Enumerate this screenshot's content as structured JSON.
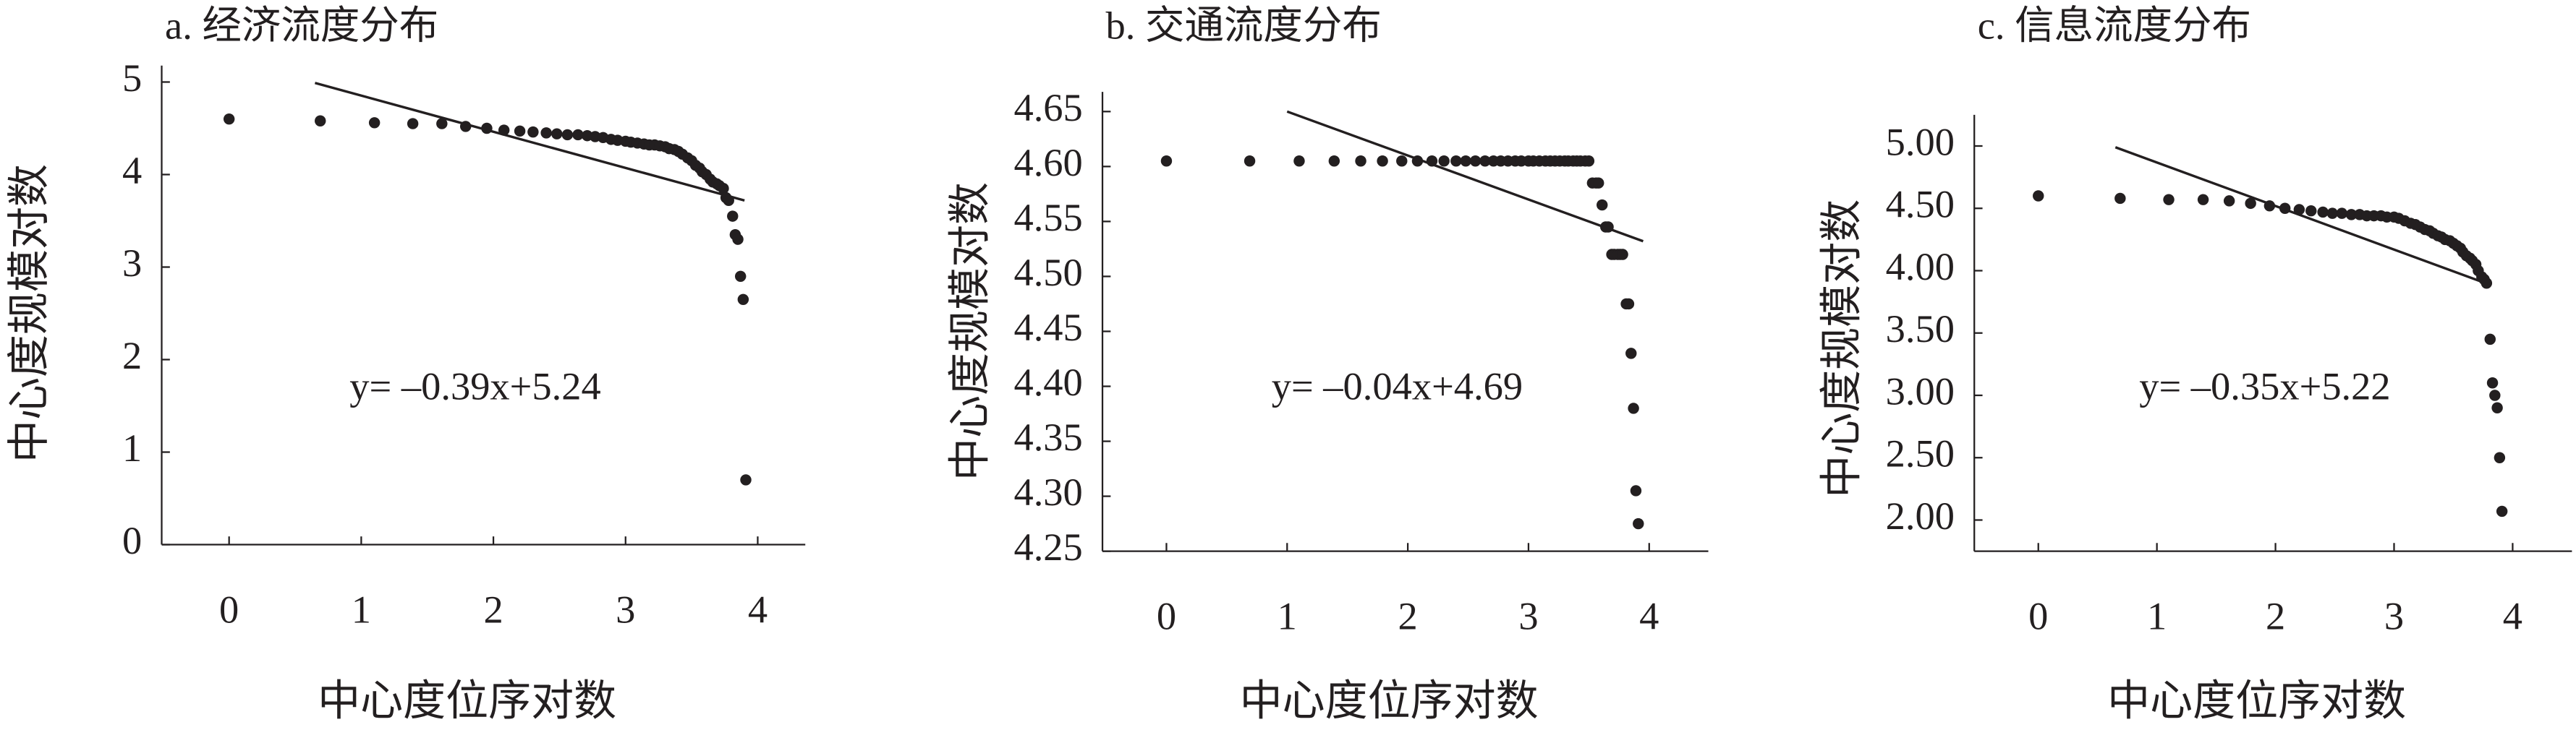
{
  "chart_data": [
    {
      "type": "scatter",
      "title": "a. 经济流度分布",
      "x_label": "中心度位序对数",
      "y_label": "中心度规模对数",
      "annotation": "y= –0.39x+5.24",
      "color": "#231f20",
      "x": [
        0,
        0.69,
        1.1,
        1.39,
        1.61,
        1.79,
        1.95,
        2.08,
        2.2,
        2.3,
        2.4,
        2.48,
        2.56,
        2.64,
        2.71,
        2.77,
        2.83,
        2.89,
        2.94,
        3.0,
        3.04,
        3.09,
        3.14,
        3.18,
        3.22,
        3.26,
        3.3,
        3.33,
        3.37,
        3.4,
        3.43,
        3.47,
        3.5,
        3.53,
        3.56,
        3.58,
        3.61,
        3.64,
        3.66,
        3.69,
        3.71,
        3.74,
        3.76,
        3.78,
        3.81,
        3.83,
        3.85,
        3.87,
        3.89,
        3.91
      ],
      "y": [
        4.6,
        4.58,
        4.56,
        4.55,
        4.55,
        4.52,
        4.5,
        4.48,
        4.47,
        4.46,
        4.45,
        4.44,
        4.43,
        4.43,
        4.42,
        4.41,
        4.4,
        4.38,
        4.37,
        4.36,
        4.35,
        4.34,
        4.33,
        4.32,
        4.32,
        4.31,
        4.3,
        4.28,
        4.27,
        4.25,
        4.22,
        4.18,
        4.15,
        4.1,
        4.07,
        4.03,
        4.0,
        3.95,
        3.92,
        3.9,
        3.88,
        3.85,
        3.75,
        3.72,
        3.55,
        3.35,
        3.3,
        2.9,
        2.65,
        0.7
      ],
      "trend_line": {
        "x": [
          0.65,
          3.9
        ],
        "y": [
          4.99,
          3.72
        ]
      },
      "xlim": [
        -0.51,
        4.36
      ],
      "ylim": [
        0,
        5
      ],
      "xticks": [
        0,
        1,
        2,
        3,
        4
      ],
      "yticks": [
        0,
        1,
        2,
        3,
        4,
        5
      ]
    },
    {
      "type": "scatter",
      "title": "b. 交通流度分布",
      "x_label": "中心度位序对数",
      "y_label": "中心度规模对数",
      "annotation": "y= –0.04x+4.69",
      "color": "#231f20",
      "x": [
        0,
        0.69,
        1.1,
        1.39,
        1.61,
        1.79,
        1.95,
        2.08,
        2.2,
        2.3,
        2.4,
        2.48,
        2.56,
        2.64,
        2.71,
        2.77,
        2.83,
        2.89,
        2.94,
        3.0,
        3.04,
        3.09,
        3.14,
        3.18,
        3.22,
        3.26,
        3.3,
        3.33,
        3.37,
        3.4,
        3.43,
        3.47,
        3.5,
        3.53,
        3.56,
        3.58,
        3.61,
        3.64,
        3.66,
        3.69,
        3.71,
        3.74,
        3.76,
        3.78,
        3.81,
        3.83,
        3.85,
        3.87,
        3.89,
        3.91
      ],
      "y": [
        4.605,
        4.605,
        4.605,
        4.605,
        4.605,
        4.605,
        4.605,
        4.605,
        4.605,
        4.605,
        4.605,
        4.605,
        4.605,
        4.605,
        4.605,
        4.605,
        4.605,
        4.605,
        4.605,
        4.605,
        4.605,
        4.605,
        4.605,
        4.605,
        4.605,
        4.605,
        4.605,
        4.605,
        4.605,
        4.605,
        4.605,
        4.605,
        4.605,
        4.585,
        4.585,
        4.585,
        4.565,
        4.545,
        4.545,
        4.52,
        4.52,
        4.52,
        4.52,
        4.52,
        4.475,
        4.475,
        4.43,
        4.38,
        4.305,
        4.275
      ],
      "trend_line": {
        "x": [
          1.0,
          3.95
        ],
        "y": [
          4.65,
          4.532
        ]
      },
      "xlim": [
        -0.53,
        4.49
      ],
      "ylim": [
        4.25,
        4.65
      ],
      "xticks": [
        0,
        1,
        2,
        3,
        4
      ],
      "yticks": [
        4.25,
        {
          "value": 4.3,
          "label": "4.30"
        },
        4.35,
        {
          "value": 4.4,
          "label": "4.40"
        },
        4.45,
        {
          "value": 4.5,
          "label": "4.50"
        },
        4.55,
        {
          "value": 4.6,
          "label": "4.60"
        },
        4.65
      ]
    },
    {
      "type": "scatter",
      "title": "c. 信息流度分布",
      "x_label": "中心度位序对数",
      "y_label": "中心度规模对数",
      "annotation": "y= –0.35x+5.22",
      "color": "#231f20",
      "x": [
        0,
        0.69,
        1.1,
        1.39,
        1.61,
        1.79,
        1.95,
        2.08,
        2.2,
        2.3,
        2.4,
        2.48,
        2.56,
        2.64,
        2.71,
        2.77,
        2.83,
        2.89,
        2.94,
        3.0,
        3.04,
        3.09,
        3.14,
        3.18,
        3.22,
        3.26,
        3.3,
        3.33,
        3.37,
        3.4,
        3.43,
        3.47,
        3.5,
        3.53,
        3.56,
        3.58,
        3.61,
        3.64,
        3.66,
        3.69,
        3.71,
        3.74,
        3.76,
        3.78,
        3.81,
        3.83,
        3.85,
        3.87,
        3.89,
        3.91
      ],
      "y": [
        4.6,
        4.58,
        4.57,
        4.57,
        4.56,
        4.54,
        4.52,
        4.5,
        4.49,
        4.48,
        4.47,
        4.46,
        4.46,
        4.45,
        4.45,
        4.44,
        4.44,
        4.44,
        4.43,
        4.43,
        4.42,
        4.4,
        4.38,
        4.37,
        4.35,
        4.33,
        4.32,
        4.3,
        4.28,
        4.27,
        4.25,
        4.24,
        4.22,
        4.2,
        4.18,
        4.15,
        4.12,
        4.1,
        4.08,
        4.05,
        4.0,
        3.95,
        3.93,
        3.9,
        3.45,
        3.1,
        3.0,
        2.9,
        2.5,
        2.07
      ],
      "trend_line": {
        "x": [
          0.65,
          3.8
        ],
        "y": [
          4.99,
          3.89
        ]
      },
      "xlim": [
        -0.54,
        4.5
      ],
      "ylim": [
        1.75,
        5
      ],
      "xticks": [
        0,
        1,
        2,
        3,
        4
      ],
      "yticks": [
        {
          "value": 2,
          "label": "2.00"
        },
        {
          "value": 2.5,
          "label": "2.50"
        },
        {
          "value": 3,
          "label": "3.00"
        },
        {
          "value": 3.5,
          "label": "3.50"
        },
        {
          "value": 4,
          "label": "4.00"
        },
        {
          "value": 4.5,
          "label": "4.50"
        },
        {
          "value": 5,
          "label": "5.00"
        }
      ]
    }
  ]
}
